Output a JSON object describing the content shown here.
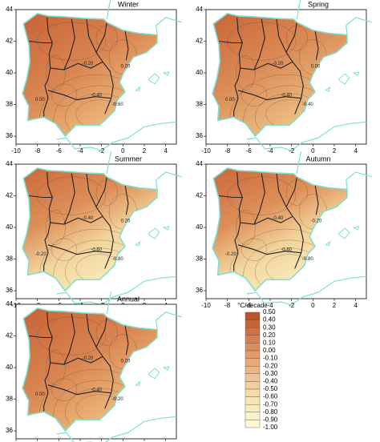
{
  "panels": [
    {
      "title": "Winter",
      "contour_labels": [
        "0.00",
        "-0.20",
        "-0.40",
        "-0.60",
        "0.20"
      ]
    },
    {
      "title": "Spring",
      "contour_labels": [
        "0.00",
        "-0.20",
        "-0.40",
        "-0.40",
        "0.00"
      ]
    },
    {
      "title": "Summer",
      "contour_labels": [
        "-0.20",
        "-0.40",
        "-0.60",
        "-0.80",
        "0.20"
      ]
    },
    {
      "title": "Autumn",
      "contour_labels": [
        "-0.20",
        "-0.40",
        "-0.60",
        "-0.80",
        "-0.20"
      ]
    },
    {
      "title": "Annual",
      "contour_labels": [
        "0.00",
        "-0.20",
        "-0.40",
        "-0.20",
        "0.20"
      ]
    }
  ],
  "xticks": [
    -10,
    -8,
    -6,
    -4,
    -2,
    0,
    2,
    4
  ],
  "yticks": [
    36,
    38,
    40,
    42,
    44
  ],
  "colorbar": {
    "title": "°C/decade",
    "labels": [
      "0.50",
      "0.40",
      "0.30",
      "0.20",
      "0.10",
      "0.00",
      "-0.10",
      "-0.20",
      "-0.30",
      "-0.40",
      "-0.50",
      "-0.60",
      "-0.70",
      "-0.80",
      "-0.90",
      "-1.00"
    ],
    "colors": [
      "#b9552b",
      "#c4633a",
      "#cd7246",
      "#d58052",
      "#dc8e5f",
      "#e29c6c",
      "#e7a979",
      "#ebb687",
      "#efc394",
      "#f2cf9f",
      "#f5daab",
      "#f7e4b5",
      "#f9ecbf",
      "#fbf3c9",
      "#fdf9d4"
    ]
  }
}
